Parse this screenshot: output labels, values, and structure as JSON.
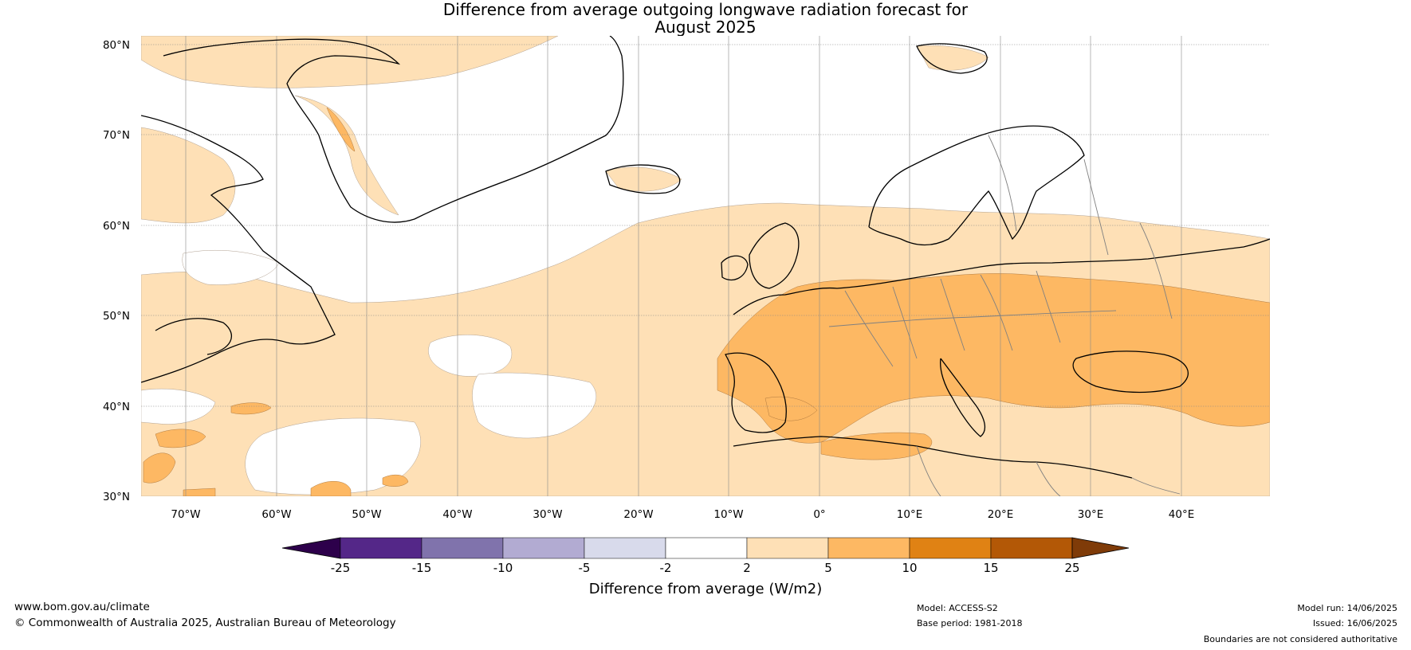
{
  "title_line1": "Difference from average outgoing longwave radiation forecast for",
  "title_line2": "August 2025",
  "lat_labels": [
    "80°N",
    "70°N",
    "60°N",
    "50°N",
    "40°N",
    "30°N"
  ],
  "lon_labels": [
    "70°W",
    "60°W",
    "50°W",
    "40°W",
    "30°W",
    "20°W",
    "10°W",
    "0°",
    "10°E",
    "20°E",
    "30°E",
    "40°E"
  ],
  "colorbar": {
    "label": "Difference from average (W/m2)",
    "ticks": [
      "-25",
      "-15",
      "-10",
      "-5",
      "-2",
      "2",
      "5",
      "10",
      "15",
      "25"
    ],
    "colors": {
      "below_min": "#2d004b",
      "bins": [
        "#542788",
        "#8073ac",
        "#b2abd2",
        "#d8daeb",
        "#ffffff",
        "#fee0b6",
        "#fdb863",
        "#e08214",
        "#b35806"
      ],
      "above_max": "#7f3b08"
    }
  },
  "footer": {
    "website": "www.bom.gov.au/climate",
    "copyright": "© Commonwealth of Australia 2025, Australian Bureau of Meteorology",
    "model": "Model: ACCESS-S2",
    "base_period": "Base period: 1981-2018",
    "model_run": "Model run: 14/06/2025",
    "issued": "Issued: 16/06/2025",
    "disclaimer": "Boundaries are not considered authoritative"
  },
  "colors": {
    "gridline": "#888888",
    "coastline": "#000000",
    "border": "#808080"
  }
}
